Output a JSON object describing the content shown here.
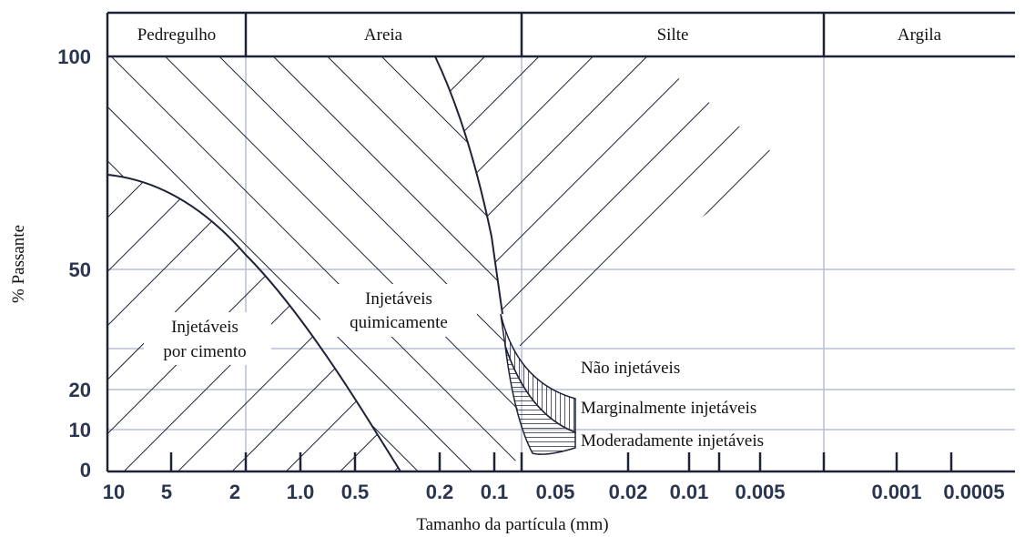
{
  "header": {
    "zones": [
      "Pedregulho",
      "Areia",
      "Silte",
      "Argila"
    ]
  },
  "y_axis": {
    "title": "% Passante",
    "labels": [
      "100",
      "50",
      "20",
      "10",
      "0"
    ]
  },
  "x_axis": {
    "title": "Tamanho da partícula (mm)",
    "labels": [
      "10",
      "5",
      "2",
      "1.0",
      "0.5",
      "0.2",
      "0.1",
      "0.05",
      "0.02",
      "0.01",
      "0.005",
      "0.001",
      "0.0005"
    ]
  },
  "regions": {
    "cement": [
      "Injetáveis",
      "por cimento"
    ],
    "chemical": [
      "Injetáveis",
      "quimicamente"
    ],
    "not": "Não injetáveis",
    "marginal": "Marginalmente injetáveis",
    "moderate": "Moderadamente injetáveis"
  }
}
